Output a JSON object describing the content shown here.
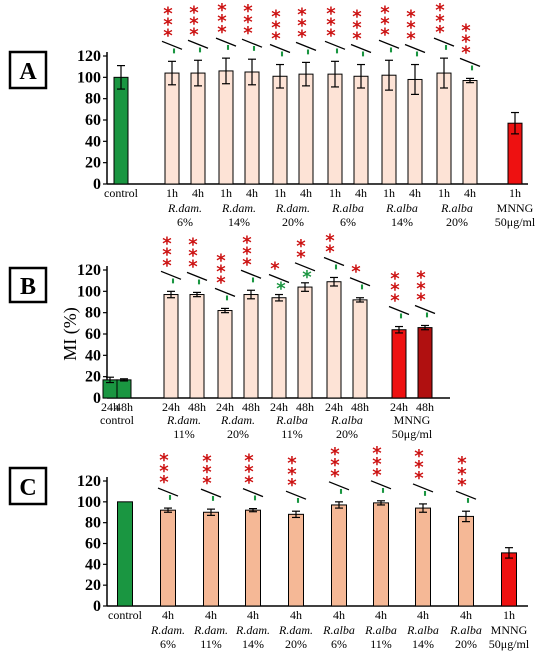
{
  "colors": {
    "control": "#1a9641",
    "light_pink": "#fde3d6",
    "peach": "#f5b896",
    "mnng_red": "#ee1111",
    "mnng_darkred": "#b01010",
    "sig_red": "#cc1111",
    "sig_green": "#1a9641",
    "axis": "#000000"
  },
  "chart_data": [
    {
      "panel": "A",
      "type": "bar",
      "ylabel": "",
      "ylim": [
        0,
        120
      ],
      "yticks": [
        0,
        20,
        40,
        60,
        80,
        100,
        120
      ],
      "groups": [
        {
          "time_labels": [
            "control"
          ],
          "agent": "",
          "dose": "",
          "values": [
            100
          ],
          "errors": [
            11
          ],
          "colors": [
            "control"
          ],
          "stars": [
            null
          ]
        },
        {
          "time_labels": [
            "1h",
            "4h"
          ],
          "agent": "R.dam.",
          "dose": "6%",
          "values": [
            104,
            104
          ],
          "errors": [
            11,
            12
          ],
          "colors": [
            "light_pink",
            "light_pink"
          ],
          "stars": [
            {
              "red": "***",
              "green": "'"
            },
            {
              "red": "***",
              "green": "'"
            }
          ]
        },
        {
          "time_labels": [
            "1h",
            "4h"
          ],
          "agent": "R.dam.",
          "dose": "14%",
          "values": [
            106,
            105
          ],
          "errors": [
            12,
            12
          ],
          "colors": [
            "light_pink",
            "light_pink"
          ],
          "stars": [
            {
              "red": "***",
              "green": "'"
            },
            {
              "red": "***",
              "green": "'"
            }
          ]
        },
        {
          "time_labels": [
            "1h",
            "4h"
          ],
          "agent": "R.dam.",
          "dose": "20%",
          "values": [
            101,
            103
          ],
          "errors": [
            11,
            11
          ],
          "colors": [
            "light_pink",
            "light_pink"
          ],
          "stars": [
            {
              "red": "***",
              "green": "'"
            },
            {
              "red": "***",
              "green": "'"
            }
          ]
        },
        {
          "time_labels": [
            "1h",
            "4h"
          ],
          "agent": "R.alba",
          "dose": "6%",
          "values": [
            103,
            101
          ],
          "errors": [
            12,
            11
          ],
          "colors": [
            "light_pink",
            "light_pink"
          ],
          "stars": [
            {
              "red": "***",
              "green": "'"
            },
            {
              "red": "***",
              "green": "'"
            }
          ]
        },
        {
          "time_labels": [
            "1h",
            "4h"
          ],
          "agent": "R.alba",
          "dose": "14%",
          "values": [
            102,
            98
          ],
          "errors": [
            14,
            14
          ],
          "colors": [
            "light_pink",
            "light_pink"
          ],
          "stars": [
            {
              "red": "***",
              "green": "'"
            },
            {
              "red": "***",
              "green": "'"
            }
          ]
        },
        {
          "time_labels": [
            "1h",
            "4h"
          ],
          "agent": "R.alba",
          "dose": "20%",
          "values": [
            104,
            97
          ],
          "errors": [
            14,
            2
          ],
          "colors": [
            "light_pink",
            "light_pink"
          ],
          "stars": [
            {
              "red": "***",
              "green": "'"
            },
            {
              "red": "***",
              "green": "'"
            }
          ]
        },
        {
          "time_labels": [
            "1h"
          ],
          "agent": "MNNG",
          "dose": "50μg/ml",
          "values": [
            57
          ],
          "errors": [
            10
          ],
          "colors": [
            "mnng_red"
          ],
          "stars": [
            null
          ]
        }
      ]
    },
    {
      "panel": "B",
      "type": "bar",
      "ylabel": "MI (%)",
      "ylim": [
        0,
        120
      ],
      "yticks": [
        0,
        20,
        40,
        60,
        80,
        100,
        120
      ],
      "groups": [
        {
          "time_labels": [
            "24h",
            "48h"
          ],
          "agent": "control",
          "dose": "",
          "values": [
            17,
            17
          ],
          "errors": [
            2.5,
            1
          ],
          "colors": [
            "control",
            "control"
          ],
          "stars": [
            null,
            null
          ]
        },
        {
          "time_labels": [
            "24h",
            "48h"
          ],
          "agent": "R.dam.",
          "dose": "11%",
          "values": [
            97,
            97
          ],
          "errors": [
            3,
            2
          ],
          "colors": [
            "light_pink",
            "light_pink"
          ],
          "stars": [
            {
              "red": "***",
              "green": "'"
            },
            {
              "red": "***",
              "green": "'"
            }
          ]
        },
        {
          "time_labels": [
            "24h",
            "48h"
          ],
          "agent": "R.dam.",
          "dose": "20%",
          "values": [
            82,
            97
          ],
          "errors": [
            2,
            4
          ],
          "colors": [
            "light_pink",
            "light_pink"
          ],
          "stars": [
            {
              "red": "***",
              "green": "'"
            },
            {
              "red": "***",
              "green": "'"
            }
          ]
        },
        {
          "time_labels": [
            "24h",
            "48h"
          ],
          "agent": "R.alba",
          "dose": "11%",
          "values": [
            94,
            104
          ],
          "errors": [
            3,
            4
          ],
          "colors": [
            "light_pink",
            "light_pink"
          ],
          "stars": [
            {
              "red": "*",
              "green": "*"
            },
            {
              "red": "**",
              "green": "*"
            }
          ]
        },
        {
          "time_labels": [
            "24h",
            "48h"
          ],
          "agent": "R.alba",
          "dose": "20%",
          "values": [
            109,
            92
          ],
          "errors": [
            4,
            2
          ],
          "colors": [
            "light_pink",
            "light_pink"
          ],
          "stars": [
            {
              "red": "**",
              "green": "'"
            },
            {
              "red": "*",
              "green": "'"
            }
          ]
        },
        {
          "time_labels": [
            "24h",
            "48h"
          ],
          "agent": "MNNG",
          "dose": "50μg/ml",
          "values": [
            64,
            66
          ],
          "errors": [
            3,
            2
          ],
          "colors": [
            "mnng_red",
            "mnng_darkred"
          ],
          "stars": [
            {
              "red": "***",
              "green": "'"
            },
            {
              "red": "***",
              "green": "'"
            }
          ]
        }
      ]
    },
    {
      "panel": "C",
      "type": "bar",
      "ylabel": "",
      "ylim": [
        0,
        120
      ],
      "yticks": [
        0,
        20,
        40,
        60,
        80,
        100,
        120
      ],
      "groups": [
        {
          "time_labels": [
            "control"
          ],
          "agent": "",
          "dose": "",
          "values": [
            100
          ],
          "errors": [
            0
          ],
          "colors": [
            "control"
          ],
          "stars": [
            null
          ]
        },
        {
          "time_labels": [
            "4h"
          ],
          "agent": "R.dam.",
          "dose": "6%",
          "values": [
            92
          ],
          "errors": [
            2
          ],
          "colors": [
            "peach"
          ],
          "stars": [
            {
              "red": "***",
              "green": "'"
            }
          ]
        },
        {
          "time_labels": [
            "4h"
          ],
          "agent": "R.dam.",
          "dose": "11%",
          "values": [
            90
          ],
          "errors": [
            3
          ],
          "colors": [
            "peach"
          ],
          "stars": [
            {
              "red": "***",
              "green": "'"
            }
          ]
        },
        {
          "time_labels": [
            "4h"
          ],
          "agent": "R.dam.",
          "dose": "14%",
          "values": [
            92
          ],
          "errors": [
            1.5
          ],
          "colors": [
            "peach"
          ],
          "stars": [
            {
              "red": "***",
              "green": "'"
            }
          ]
        },
        {
          "time_labels": [
            "4h"
          ],
          "agent": "R.dam.",
          "dose": "20%",
          "values": [
            88
          ],
          "errors": [
            3
          ],
          "colors": [
            "peach"
          ],
          "stars": [
            {
              "red": "***",
              "green": "'"
            }
          ]
        },
        {
          "time_labels": [
            "4h"
          ],
          "agent": "R.alba",
          "dose": "6%",
          "values": [
            97
          ],
          "errors": [
            3
          ],
          "colors": [
            "peach"
          ],
          "stars": [
            {
              "red": "***",
              "green": "'"
            }
          ]
        },
        {
          "time_labels": [
            "4h"
          ],
          "agent": "R.alba",
          "dose": "11%",
          "values": [
            99
          ],
          "errors": [
            2
          ],
          "colors": [
            "peach"
          ],
          "stars": [
            {
              "red": "***",
              "green": "'"
            }
          ]
        },
        {
          "time_labels": [
            "4h"
          ],
          "agent": "R.alba",
          "dose": "14%",
          "values": [
            94
          ],
          "errors": [
            4
          ],
          "colors": [
            "peach"
          ],
          "stars": [
            {
              "red": "***",
              "green": "'"
            }
          ]
        },
        {
          "time_labels": [
            "4h"
          ],
          "agent": "R.alba",
          "dose": "20%",
          "values": [
            86
          ],
          "errors": [
            5
          ],
          "colors": [
            "peach"
          ],
          "stars": [
            {
              "red": "***",
              "green": "'"
            }
          ]
        },
        {
          "time_labels": [
            "1h"
          ],
          "agent": "MNNG",
          "dose": "50μg/ml",
          "values": [
            51
          ],
          "errors": [
            5
          ],
          "colors": [
            "mnng_red"
          ],
          "stars": [
            null
          ]
        }
      ]
    }
  ]
}
